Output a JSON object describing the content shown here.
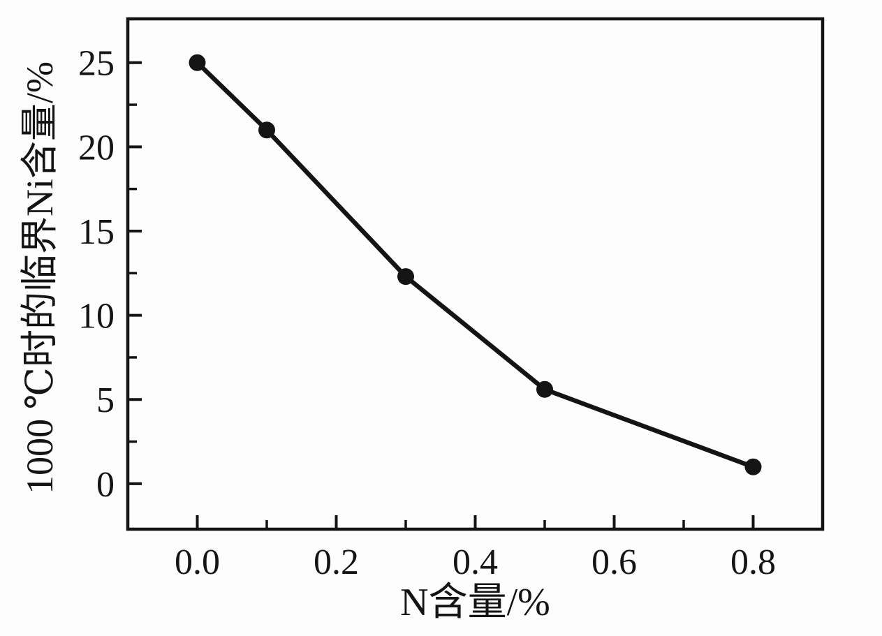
{
  "page": {
    "background_color": "#fdfdfd",
    "ink_color": "#141414"
  },
  "chart_data": {
    "type": "line",
    "title": "",
    "xlabel": "N含量/%",
    "ylabel": "1000 ℃时的临界Ni含量/%",
    "x": [
      0.0,
      0.1,
      0.3,
      0.5,
      0.8
    ],
    "y": [
      25.0,
      21.0,
      12.3,
      5.6,
      1.0
    ],
    "xlim": [
      -0.1,
      0.9
    ],
    "ylim": [
      -2.7,
      27.6
    ],
    "x_major_ticks": [
      0.0,
      0.2,
      0.4,
      0.6,
      0.8
    ],
    "x_tick_labels": [
      "0.0",
      "0.2",
      "0.4",
      "0.6",
      "0.8"
    ],
    "x_minor_ticks": [
      0.1,
      0.3,
      0.5,
      0.7
    ],
    "y_major_ticks": [
      0,
      5,
      10,
      15,
      20,
      25
    ],
    "y_tick_labels": [
      "0",
      "5",
      "10",
      "15",
      "20",
      "25"
    ],
    "y_minor_ticks": [
      2.5,
      7.5,
      12.5,
      17.5,
      22.5
    ],
    "grid": false,
    "legend": false,
    "line_color": "#141414",
    "marker": "filled-circle",
    "marker_color": "#141414"
  }
}
